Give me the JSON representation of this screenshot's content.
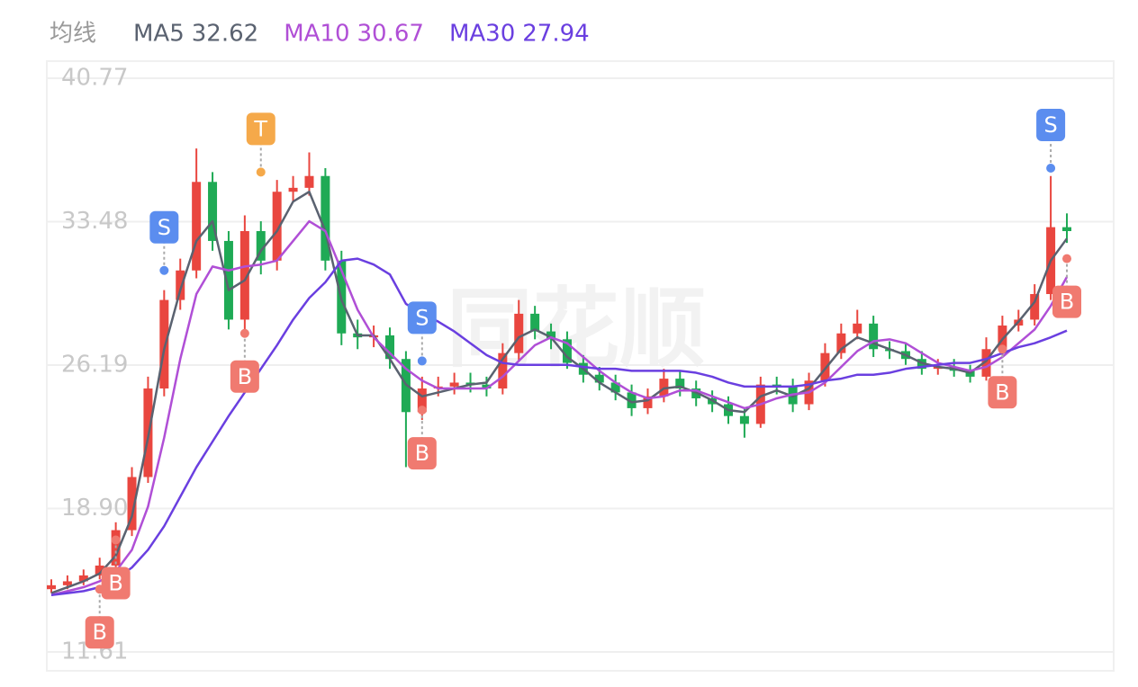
{
  "chart_data": {
    "type": "candlestick",
    "legend_title": "均线",
    "watermark": "同花顺",
    "ylim": [
      11.61,
      40.77
    ],
    "yticks": [
      11.61,
      {
        "value": 18.9,
        "label": "18.90"
      },
      26.19,
      33.48,
      40.77
    ],
    "grid": true,
    "up_color": "#e9463f",
    "down_color": "#1faa55",
    "open": [
      14.8,
      15.0,
      15.2,
      15.5,
      16.0,
      17.8,
      20.5,
      25.0,
      29.5,
      31.0,
      35.5,
      32.5,
      28.5,
      33.0,
      31.5,
      35.0,
      35.2,
      35.8,
      31.5,
      27.8,
      27.6,
      27.7,
      26.5,
      23.8,
      25.0,
      25.1,
      25.3,
      25.2,
      25.0,
      26.8,
      28.8,
      27.9,
      27.5,
      26.3,
      25.7,
      25.3,
      24.8,
      24.0,
      24.6,
      25.5,
      25.0,
      24.5,
      24.2,
      23.6,
      23.2,
      25.2,
      25.1,
      24.2,
      25.4,
      26.8,
      27.8,
      28.3,
      27.0,
      26.9,
      26.5,
      26.0,
      26.1,
      25.9,
      25.6,
      27.0,
      28.2,
      28.5,
      29.8,
      33.2
    ],
    "high": [
      15.3,
      15.5,
      15.8,
      16.4,
      18.2,
      21.0,
      25.6,
      30.0,
      31.6,
      37.2,
      36.0,
      33.0,
      33.8,
      33.5,
      35.6,
      35.8,
      37.0,
      36.2,
      32.0,
      28.5,
      28.2,
      28.1,
      26.9,
      25.6,
      25.6,
      25.8,
      25.8,
      25.6,
      27.3,
      29.5,
      29.2,
      28.3,
      27.9,
      26.7,
      26.1,
      25.7,
      25.2,
      25.0,
      26.0,
      25.9,
      25.4,
      24.9,
      24.6,
      24.0,
      25.6,
      25.6,
      25.5,
      25.8,
      27.3,
      28.3,
      29.0,
      28.7,
      27.4,
      27.3,
      26.9,
      26.5,
      26.5,
      26.2,
      27.6,
      28.7,
      29.0,
      30.3,
      35.8,
      33.9
    ],
    "low": [
      14.6,
      14.8,
      15.0,
      15.3,
      15.8,
      17.5,
      20.2,
      24.6,
      29.0,
      30.6,
      32.0,
      28.0,
      27.6,
      30.8,
      31.0,
      34.5,
      34.8,
      31.0,
      27.2,
      27.0,
      27.1,
      26.0,
      21.0,
      23.4,
      24.6,
      24.7,
      24.8,
      24.6,
      24.7,
      26.4,
      27.5,
      27.0,
      26.0,
      25.3,
      24.9,
      24.4,
      23.6,
      23.7,
      24.3,
      24.6,
      24.1,
      23.8,
      23.2,
      22.5,
      23.0,
      24.7,
      23.8,
      23.9,
      25.1,
      26.5,
      27.5,
      26.6,
      26.5,
      26.2,
      25.7,
      25.7,
      25.6,
      25.3,
      25.4,
      26.7,
      27.9,
      28.2,
      29.5,
      32.4
    ],
    "close": [
      15.0,
      15.2,
      15.5,
      16.0,
      17.8,
      20.5,
      25.0,
      29.5,
      31.0,
      35.5,
      32.5,
      28.5,
      33.0,
      31.5,
      35.0,
      35.2,
      35.8,
      31.5,
      27.8,
      27.6,
      27.7,
      26.5,
      23.8,
      25.0,
      25.1,
      25.3,
      25.2,
      25.0,
      26.8,
      28.8,
      27.9,
      27.5,
      26.3,
      25.7,
      25.3,
      24.8,
      24.0,
      24.6,
      25.5,
      25.0,
      24.5,
      24.2,
      23.6,
      23.2,
      25.2,
      25.1,
      24.2,
      25.4,
      26.8,
      27.8,
      28.3,
      27.0,
      26.9,
      26.5,
      26.0,
      26.1,
      25.9,
      25.6,
      27.0,
      28.2,
      28.5,
      29.8,
      33.2,
      33.0
    ],
    "series": [
      {
        "name": "MA5",
        "latest": 32.62,
        "color": "#5a6270",
        "values": [
          14.6,
          14.9,
          15.2,
          15.6,
          16.5,
          18.5,
          22.5,
          27.0,
          30.0,
          32.5,
          33.5,
          30.0,
          30.5,
          32.0,
          33.0,
          34.5,
          35.0,
          33.0,
          29.5,
          27.7,
          27.7,
          26.5,
          25.2,
          24.6,
          24.8,
          25.0,
          25.2,
          25.3,
          26.5,
          27.6,
          28.0,
          27.6,
          26.6,
          26.0,
          25.3,
          24.8,
          24.3,
          24.4,
          25.0,
          25.1,
          24.8,
          24.4,
          23.9,
          23.8,
          24.6,
          24.9,
          24.6,
          25.0,
          26.0,
          27.0,
          27.6,
          27.3,
          27.0,
          26.7,
          26.3,
          26.1,
          26.0,
          25.8,
          26.4,
          27.5,
          28.4,
          29.4,
          31.5,
          32.62
        ]
      },
      {
        "name": "MA10",
        "latest": 30.67,
        "color": "#b04fd6",
        "values": [
          14.5,
          14.7,
          14.9,
          15.2,
          15.7,
          16.8,
          19.0,
          22.5,
          26.5,
          29.8,
          31.2,
          31.0,
          31.2,
          31.3,
          31.5,
          32.5,
          33.5,
          33.0,
          31.0,
          29.0,
          27.6,
          26.8,
          26.0,
          25.4,
          25.0,
          25.0,
          25.0,
          25.0,
          25.6,
          26.4,
          27.2,
          27.6,
          27.3,
          26.6,
          25.9,
          25.3,
          24.8,
          24.5,
          24.6,
          24.9,
          24.9,
          24.6,
          24.3,
          24.0,
          24.2,
          24.5,
          24.7,
          24.8,
          25.3,
          26.1,
          26.9,
          27.4,
          27.5,
          27.3,
          26.8,
          26.3,
          26.1,
          25.9,
          26.1,
          26.6,
          27.3,
          28.0,
          29.2,
          30.67
        ]
      },
      {
        "name": "MA30",
        "latest": 27.94,
        "color": "#6a3fe0",
        "values": [
          14.5,
          14.6,
          14.7,
          14.9,
          15.3,
          15.9,
          16.8,
          18.0,
          19.5,
          21.0,
          22.3,
          23.6,
          24.8,
          26.0,
          27.2,
          28.5,
          29.6,
          30.4,
          31.5,
          31.6,
          31.3,
          30.8,
          29.3,
          28.8,
          28.4,
          27.9,
          27.3,
          26.7,
          26.3,
          26.2,
          26.2,
          26.2,
          26.2,
          26.1,
          26.0,
          26.0,
          25.9,
          25.9,
          25.9,
          25.9,
          25.8,
          25.6,
          25.3,
          25.1,
          25.1,
          25.1,
          25.1,
          25.2,
          25.4,
          25.5,
          25.7,
          25.7,
          25.8,
          26.0,
          26.1,
          26.2,
          26.3,
          26.3,
          26.5,
          26.8,
          27.1,
          27.3,
          27.6,
          27.94
        ]
      }
    ],
    "signals": [
      {
        "label": "B",
        "index": 3,
        "price": 14.8,
        "side": "below",
        "color": "#f07a70"
      },
      {
        "label": "B",
        "index": 4,
        "price": 17.3,
        "side": "below",
        "color": "#f07a70"
      },
      {
        "label": "S",
        "index": 7,
        "price": 31.0,
        "side": "above",
        "color": "#5b8def"
      },
      {
        "label": "B",
        "index": 12,
        "price": 27.8,
        "side": "below",
        "color": "#f07a70"
      },
      {
        "label": "T",
        "index": 13,
        "price": 36.0,
        "side": "above",
        "color": "#f5a94a"
      },
      {
        "label": "S",
        "index": 23,
        "price": 26.4,
        "side": "above",
        "color": "#5b8def"
      },
      {
        "label": "B",
        "index": 23,
        "price": 23.9,
        "side": "below",
        "color": "#f07a70"
      },
      {
        "label": "B",
        "index": 59,
        "price": 27.0,
        "side": "below",
        "color": "#f07a70"
      },
      {
        "label": "S",
        "index": 62,
        "price": 36.2,
        "side": "above",
        "color": "#5b8def"
      },
      {
        "label": "B",
        "index": 63,
        "price": 31.6,
        "side": "below",
        "color": "#f07a70"
      }
    ]
  }
}
